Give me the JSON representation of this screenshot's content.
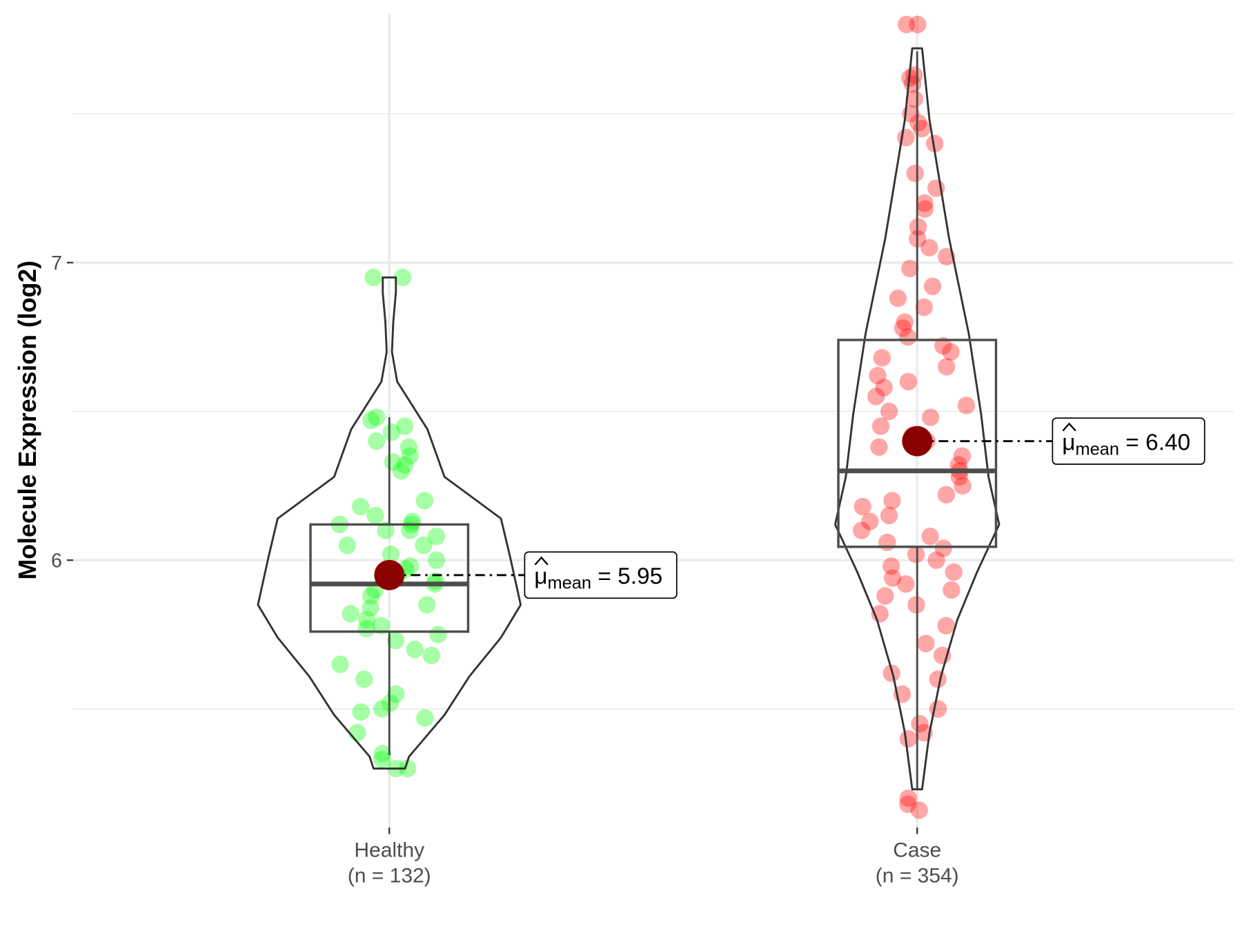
{
  "chart_data": {
    "type": "violin",
    "title": "",
    "xlabel": "",
    "ylabel": "Molecule Expression (log2)",
    "ylim": [
      4.9,
      7.85
    ],
    "y_ticks": [
      6,
      7
    ],
    "y_tick_labels": [
      "6",
      "7"
    ],
    "y_minor_gridlines": [
      5.5,
      6.5,
      7.5
    ],
    "grid": true,
    "groups": [
      {
        "name": "Healthy",
        "n_label": "(n = 132)",
        "color": "#00ff00",
        "box": {
          "whisker_low": 5.345,
          "q1": 5.76,
          "median": 5.92,
          "q3": 6.12,
          "whisker_high": 6.48
        },
        "violin": {
          "y": [
            5.3,
            5.34,
            5.48,
            5.61,
            5.74,
            5.85,
            6.01,
            6.14,
            6.28,
            6.44,
            6.6,
            6.7,
            6.8,
            6.9,
            6.95
          ],
          "density": [
            0.12,
            0.15,
            0.42,
            0.61,
            0.85,
            1.0,
            0.92,
            0.85,
            0.42,
            0.29,
            0.06,
            0.02,
            0.03,
            0.05,
            0.05
          ]
        },
        "mean": 5.95,
        "mean_label": {
          "symbol": "μ",
          "subscript": "mean",
          "equals": "=",
          "value": "5.95"
        },
        "points": [
          6.95,
          6.95,
          6.48,
          6.47,
          6.45,
          6.43,
          6.4,
          6.38,
          6.35,
          6.33,
          6.32,
          6.3,
          6.2,
          6.18,
          6.15,
          6.13,
          6.12,
          6.12,
          6.1,
          6.1,
          6.08,
          6.05,
          6.05,
          6.02,
          6.0,
          5.98,
          5.97,
          5.95,
          5.93,
          5.92,
          5.9,
          5.88,
          5.85,
          5.84,
          5.82,
          5.8,
          5.78,
          5.77,
          5.75,
          5.73,
          5.7,
          5.68,
          5.65,
          5.6,
          5.55,
          5.52,
          5.5,
          5.49,
          5.47,
          5.42,
          5.35,
          5.33,
          5.3,
          5.3
        ]
      },
      {
        "name": "Case",
        "n_label": "(n = 354)",
        "color": "#ff0000",
        "box": {
          "whisker_low": 5.23,
          "q1": 6.045,
          "median": 6.3,
          "q3": 6.74,
          "whisker_high": 7.71
        },
        "violin": {
          "y": [
            5.23,
            5.42,
            5.61,
            5.8,
            5.96,
            6.12,
            6.28,
            6.49,
            6.76,
            7.08,
            7.48,
            7.72
          ],
          "density": [
            0.06,
            0.15,
            0.29,
            0.49,
            0.73,
            1.0,
            0.87,
            0.78,
            0.63,
            0.39,
            0.15,
            0.06
          ]
        },
        "mean": 6.4,
        "mean_label": {
          "symbol": "μ",
          "subscript": "mean",
          "equals": "=",
          "value": "6.40"
        },
        "points": [
          7.8,
          7.8,
          7.63,
          7.62,
          7.6,
          7.55,
          7.5,
          7.47,
          7.45,
          7.42,
          7.4,
          7.3,
          7.25,
          7.2,
          7.18,
          7.12,
          7.08,
          7.05,
          7.02,
          6.98,
          6.92,
          6.88,
          6.85,
          6.8,
          6.78,
          6.75,
          6.72,
          6.7,
          6.68,
          6.65,
          6.62,
          6.6,
          6.58,
          6.55,
          6.52,
          6.5,
          6.48,
          6.45,
          6.42,
          6.4,
          6.38,
          6.35,
          6.32,
          6.3,
          6.28,
          6.25,
          6.22,
          6.2,
          6.18,
          6.15,
          6.13,
          6.1,
          6.08,
          6.06,
          6.04,
          6.02,
          6.0,
          5.98,
          5.96,
          5.94,
          5.92,
          5.9,
          5.88,
          5.85,
          5.82,
          5.78,
          5.72,
          5.68,
          5.62,
          5.6,
          5.55,
          5.5,
          5.45,
          5.42,
          5.4,
          5.2,
          5.18,
          5.16
        ]
      }
    ],
    "mean_point_color": "#8b0000"
  }
}
